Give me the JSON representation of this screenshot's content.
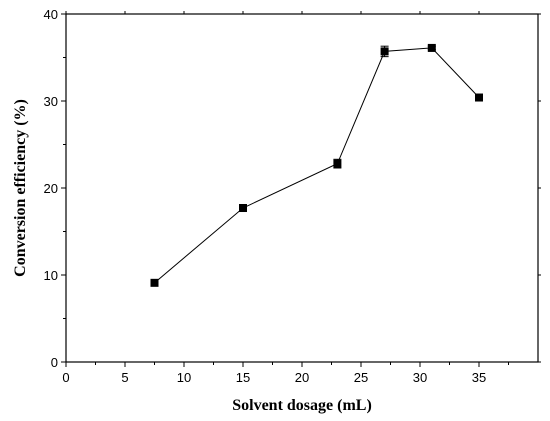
{
  "chart_data": {
    "type": "line",
    "title": "",
    "xlabel": "Solvent dosage (mL)",
    "ylabel": "Conversion efficiency (%)",
    "xlim": [
      0,
      40
    ],
    "ylim": [
      0,
      40
    ],
    "xticks": [
      0,
      5,
      10,
      15,
      20,
      25,
      30,
      35
    ],
    "yticks": [
      0,
      10,
      20,
      30,
      40
    ],
    "grid": false,
    "legend": "none",
    "marker": "square",
    "colors": {
      "line": "#000000",
      "marker": "#000000"
    },
    "series": [
      {
        "x": [
          7.5,
          15,
          23,
          27,
          31,
          35
        ],
        "y": [
          9.1,
          17.7,
          22.8,
          35.7,
          36.1,
          30.4
        ],
        "error": [
          0.2,
          0.4,
          0.5,
          0.6,
          0.2,
          0.2
        ]
      }
    ]
  }
}
